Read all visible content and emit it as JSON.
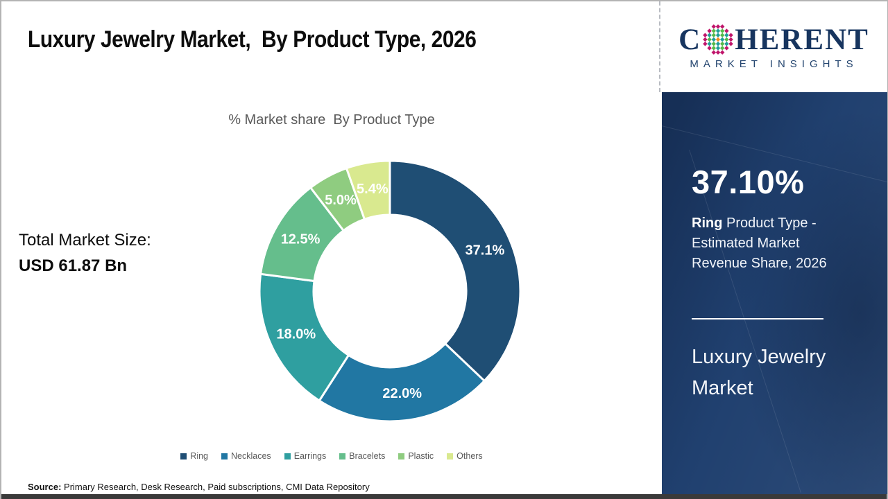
{
  "header": {
    "title": "Luxury Jewelry Market,  By Product Type, 2026"
  },
  "logo": {
    "prefix": "C",
    "suffix": "HERENT",
    "subtitle": "MARKET INSIGHTS",
    "brand_navy": "#17355f",
    "globe_palette": {
      "magenta": "#c0156b",
      "green": "#55b948",
      "teal": "#1e9e9a",
      "orange": "#f08a1d"
    }
  },
  "left_panel": {
    "total_label": "Total Market Size:",
    "total_value": "USD 61.87 Bn"
  },
  "chart_data": {
    "type": "pie",
    "subtype": "donut",
    "title": "% Market share  By Product Type",
    "categories": [
      "Ring",
      "Necklaces",
      "Earrings",
      "Bracelets",
      "Plastic",
      "Others"
    ],
    "values": [
      37.1,
      22.0,
      18.0,
      12.5,
      5.0,
      5.4
    ],
    "data_labels": [
      "37.1%",
      "22.0%",
      "18.0%",
      "12.5%",
      "5.0%",
      "5.4%"
    ],
    "colors": [
      "#1f4e74",
      "#2177a3",
      "#2f9fa0",
      "#65be8c",
      "#8fcc80",
      "#d9e98f"
    ],
    "start_angle_deg": 0,
    "direction": "clockwise",
    "inner_radius_ratio": 0.585,
    "legend_position": "bottom",
    "label_color": "#ffffff"
  },
  "sidebar": {
    "stat_value": "37.10%",
    "stat_bold": "Ring",
    "stat_rest": " Product Type - Estimated Market Revenue Share, 2026",
    "market_name": "Luxury Jewelry Market",
    "panel_color": "#20406f"
  },
  "footer": {
    "source_label": "Source:",
    "source_text": " Primary Research, Desk Research, Paid subscriptions, CMI Data Repository"
  }
}
